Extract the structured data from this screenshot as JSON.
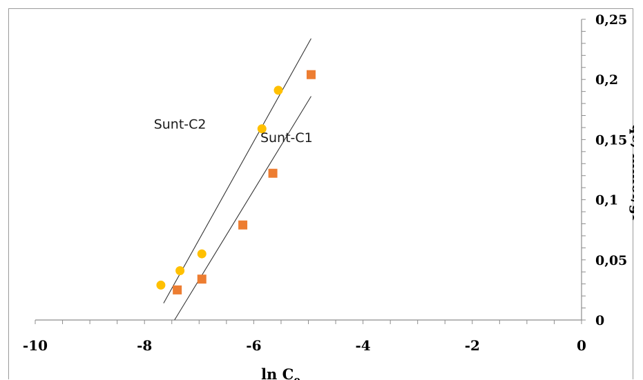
{
  "chart_data": {
    "type": "scatter",
    "title": "",
    "xlabel": "ln C",
    "xlabel_subscript": "e",
    "ylabel": "qe, mmol/gr",
    "xlim": [
      -10,
      0
    ],
    "ylim": [
      0,
      0.25
    ],
    "x_ticks": [
      -10,
      -8,
      -6,
      -4,
      -2,
      0
    ],
    "x_tick_labels": [
      "-10",
      "-8",
      "-6",
      "-4",
      "-2",
      "0"
    ],
    "y_ticks": [
      0,
      0.05,
      0.1,
      0.15,
      0.2,
      0.25
    ],
    "y_tick_labels": [
      "0",
      "0,05",
      "0,1",
      "0,15",
      "0,2",
      "0,25"
    ],
    "grid": false,
    "legend": "none",
    "series": [
      {
        "name": "Sunt-C2",
        "marker": "circle",
        "color": "#FFC000",
        "x": [
          -7.7,
          -7.35,
          -6.95,
          -5.85,
          -5.55
        ],
        "y": [
          0.029,
          0.041,
          0.055,
          0.159,
          0.191
        ],
        "trendline": {
          "x": [
            -7.65,
            -4.95
          ],
          "y": [
            0.014,
            0.234
          ]
        },
        "label_anchor": {
          "x": -7.35,
          "y": 0.159
        }
      },
      {
        "name": "Sunt-C1",
        "marker": "square",
        "color": "#ED7D31",
        "x": [
          -7.4,
          -6.95,
          -6.2,
          -5.65,
          -4.95
        ],
        "y": [
          0.025,
          0.034,
          0.079,
          0.122,
          0.204
        ],
        "trendline": {
          "x": [
            -7.45,
            -4.95
          ],
          "y": [
            0.0,
            0.186
          ]
        },
        "label_anchor": {
          "x": -5.4,
          "y": 0.148
        }
      }
    ]
  }
}
